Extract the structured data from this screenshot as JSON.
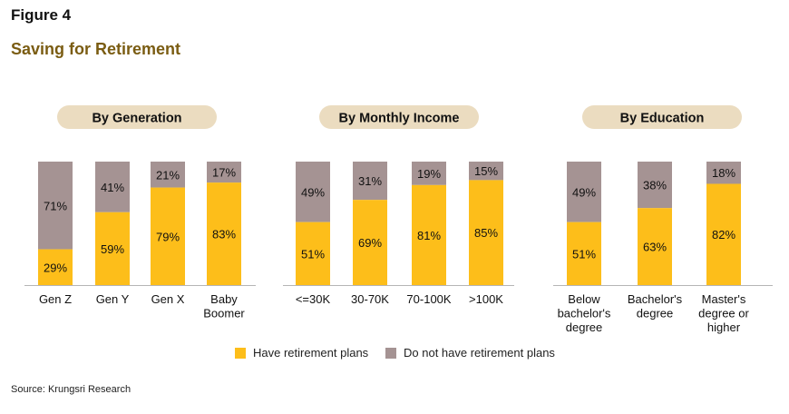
{
  "figure_label": "Figure 4",
  "title": "Saving for Retirement",
  "source": "Source: Krungsri Research",
  "colors": {
    "have": "#FDBE1A",
    "not_have": "#A59393",
    "pill": "#EBDCC0",
    "title": "#7a5c12"
  },
  "legend": [
    {
      "label": "Have retirement plans",
      "color": "#FDBE1A"
    },
    {
      "label": "Do not have retirement plans",
      "color": "#A59393"
    }
  ],
  "chart_data": [
    {
      "type": "bar",
      "stacked": true,
      "title": "By Generation",
      "categories": [
        "Gen Z",
        "Gen Y",
        "Gen X",
        "Baby Boomer"
      ],
      "series": [
        {
          "name": "Have retirement plans",
          "values": [
            29,
            59,
            79,
            83
          ]
        },
        {
          "name": "Do not have retirement plans",
          "values": [
            71,
            41,
            21,
            17
          ]
        }
      ],
      "ylim": [
        0,
        100
      ],
      "unit": "%",
      "grid": false
    },
    {
      "type": "bar",
      "stacked": true,
      "title": "By Monthly Income",
      "categories": [
        "<=30K",
        "30-70K",
        "70-100K",
        ">100K"
      ],
      "series": [
        {
          "name": "Have retirement plans",
          "values": [
            51,
            69,
            81,
            85
          ]
        },
        {
          "name": "Do not have retirement plans",
          "values": [
            49,
            31,
            19,
            15
          ]
        }
      ],
      "ylim": [
        0,
        100
      ],
      "unit": "%",
      "grid": false
    },
    {
      "type": "bar",
      "stacked": true,
      "title": "By Education",
      "categories": [
        "Below bachelor's degree",
        "Bachelor's degree",
        "Master's degree or higher"
      ],
      "series": [
        {
          "name": "Have retirement plans",
          "values": [
            51,
            63,
            82
          ]
        },
        {
          "name": "Do not have retirement plans",
          "values": [
            49,
            38,
            18
          ]
        }
      ],
      "ylim": [
        0,
        100
      ],
      "unit": "%",
      "grid": false
    }
  ]
}
